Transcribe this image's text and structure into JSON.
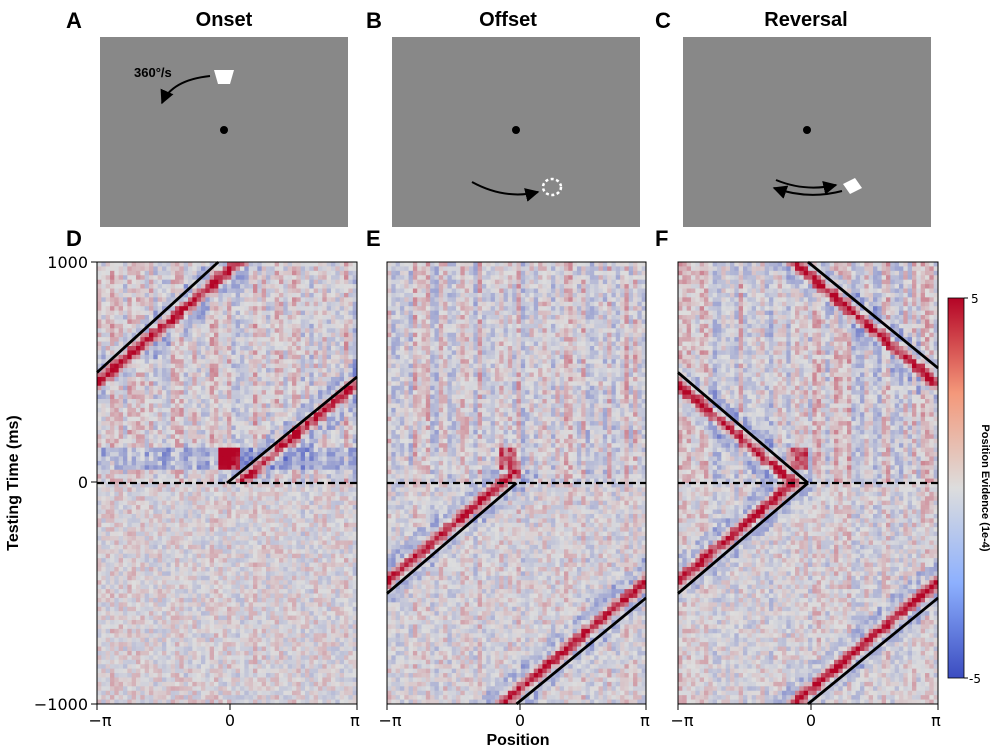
{
  "stimulus_panels": [
    {
      "letter": "A",
      "title": "Onset",
      "speed_label": "360°/s",
      "icon": "bar-stimulus-icon"
    },
    {
      "letter": "B",
      "title": "Offset",
      "icon": "dashed-bar-stimulus-icon"
    },
    {
      "letter": "C",
      "title": "Reversal",
      "icon": "bar-stimulus-icon"
    }
  ],
  "heatmap_panels": [
    {
      "letter": "D"
    },
    {
      "letter": "E"
    },
    {
      "letter": "F"
    }
  ],
  "axes": {
    "ylabel": "Testing Time (ms)",
    "xlabel": "Position",
    "y_ticks": [
      "1000",
      "0",
      "−1000"
    ],
    "x_ticks": [
      "−π",
      "0",
      "π"
    ]
  },
  "colorbar": {
    "label": "Position Evidence (1e-4)",
    "max_label": "5",
    "min_label": "-5",
    "colors": {
      "low": "#3b4cc0",
      "mid": "#dddddd",
      "high": "#b40426"
    }
  },
  "chart_data": [
    {
      "type": "heatmap",
      "panel": "D",
      "x_range": [
        -3.1416,
        3.1416
      ],
      "y_range": [
        -1000,
        1000
      ],
      "value_range": [
        -5,
        5
      ],
      "reference_lines": [
        {
          "x": [
            -3.1416,
            -0.2094
          ],
          "y": [
            500,
            1000
          ]
        },
        {
          "x": [
            0,
            3.1416
          ],
          "y": [
            0,
            480
          ]
        }
      ],
      "dashed_line_y": 0
    },
    {
      "type": "heatmap",
      "panel": "E",
      "x_range": [
        -3.1416,
        3.1416
      ],
      "y_range": [
        -1000,
        1000
      ],
      "value_range": [
        -5,
        5
      ],
      "reference_lines": [
        {
          "x": [
            -3.1416,
            0
          ],
          "y": [
            -500,
            0
          ]
        },
        {
          "x": [
            0,
            3.1416
          ],
          "y": [
            -1000,
            -520
          ]
        }
      ],
      "dashed_line_y": 0
    },
    {
      "type": "heatmap",
      "panel": "F",
      "x_range": [
        -3.1416,
        3.1416
      ],
      "y_range": [
        -1000,
        1000
      ],
      "value_range": [
        -5,
        5
      ],
      "reference_lines": [
        {
          "x": [
            -3.1416,
            0
          ],
          "y": [
            500,
            0
          ]
        },
        {
          "x": [
            -3.1416,
            0
          ],
          "y": [
            -500,
            0
          ]
        },
        {
          "x": [
            0,
            3.1416
          ],
          "y": [
            -1000,
            -520
          ]
        },
        {
          "x": [
            0,
            3.1416
          ],
          "y": [
            1000,
            520
          ]
        }
      ],
      "dashed_line_y": 0
    }
  ]
}
